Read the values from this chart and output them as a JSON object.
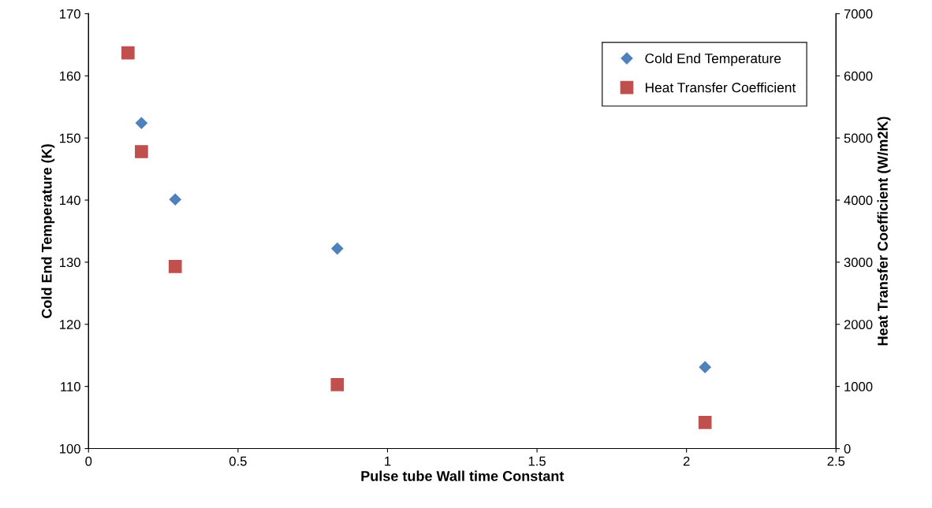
{
  "chart_data": {
    "type": "scatter",
    "xlabel": "Pulse tube Wall time Constant",
    "ylabel": "Cold End Temperature (K)",
    "y2label": "Heat Transfer Coefficient (W/m2K)",
    "series": [
      {
        "name": "Cold End Temperature",
        "color": "#4f81bd",
        "marker": "diamond",
        "x": [
          0.177,
          0.29,
          0.832,
          2.062
        ],
        "values": [
          152.4,
          140.1,
          132.2,
          113.1
        ]
      },
      {
        "name": "Heat Transfer Coefficient",
        "color": "#c0504d",
        "marker": "square",
        "axis": "y2",
        "x": [
          0.132,
          0.177,
          0.29,
          0.832,
          2.062
        ],
        "values": [
          6370,
          4780,
          2930,
          1030,
          420
        ]
      }
    ],
    "xlim": [
      0,
      2.5
    ],
    "xticks": [
      0,
      0.5,
      1,
      1.5,
      2,
      2.5
    ],
    "ylim": [
      100,
      170
    ],
    "yticks": [
      100,
      110,
      120,
      130,
      140,
      150,
      160,
      170
    ],
    "y2lim": [
      0,
      7000
    ],
    "y2ticks": [
      0,
      1000,
      2000,
      3000,
      4000,
      5000,
      6000,
      7000
    ],
    "grid": false,
    "legend": "top right"
  }
}
